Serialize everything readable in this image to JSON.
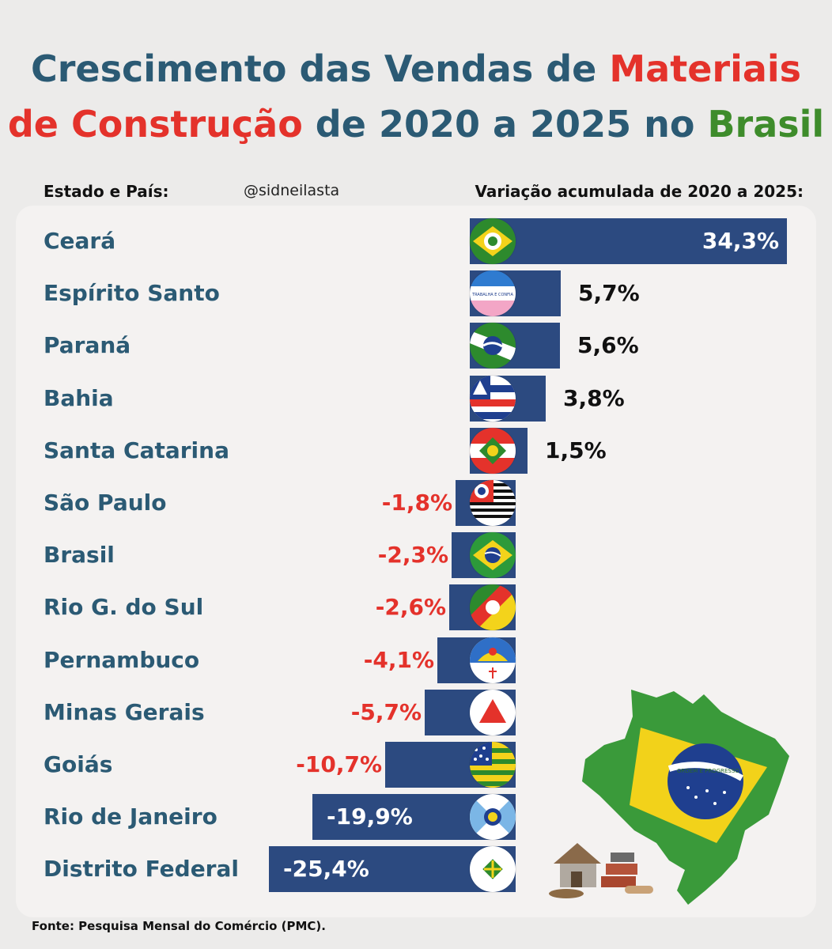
{
  "title": {
    "part1": "Crescimento das Vendas de ",
    "part2": "Materiais",
    "part3": "de Construção",
    "part4": " de 2020 a 2025 no ",
    "part5": "Brasil"
  },
  "header": {
    "left": "Estado e País:",
    "handle": "@sidneilasta",
    "right": "Variação acumulada de 2020 a 2025:"
  },
  "source": "Fonte: Pesquisa Mensal do Comércio (PMC).",
  "colors": {
    "bar": "#2c4a80",
    "negative": "#e4322b",
    "positive": "#111111",
    "label": "#2b5a74"
  },
  "chart_data": {
    "type": "bar",
    "orientation": "horizontal",
    "title": "Crescimento das Vendas de Materiais de Construção de 2020 a 2025 no Brasil",
    "xlabel": "Variação acumulada de 2020 a 2025",
    "ylabel": "Estado e País",
    "unit": "%",
    "categories": [
      "Ceará",
      "Espírito Santo",
      "Paraná",
      "Bahia",
      "Santa Catarina",
      "São Paulo",
      "Brasil",
      "Rio G. do Sul",
      "Pernambuco",
      "Minas Gerais",
      "Goiás",
      "Rio de Janeiro",
      "Distrito Federal"
    ],
    "values": [
      34.3,
      5.7,
      5.6,
      3.8,
      1.5,
      -1.8,
      -2.3,
      -2.6,
      -4.1,
      -5.7,
      -10.7,
      -19.9,
      -25.4
    ],
    "labels": [
      "34,3%",
      "5,7%",
      "5,6%",
      "3,8%",
      "1,5%",
      "-1,8%",
      "-2,3%",
      "-2,6%",
      "-4,1%",
      "-5,7%",
      "-10,7%",
      "-19,9%",
      "-25,4%"
    ],
    "flags": [
      "ceara-flag-icon",
      "espirito-santo-flag-icon",
      "parana-flag-icon",
      "bahia-flag-icon",
      "santa-catarina-flag-icon",
      "sao-paulo-flag-icon",
      "brasil-flag-icon",
      "rio-grande-do-sul-flag-icon",
      "pernambuco-flag-icon",
      "minas-gerais-flag-icon",
      "goias-flag-icon",
      "rio-de-janeiro-flag-icon",
      "distrito-federal-flag-icon"
    ],
    "flag_texts": {
      "espirito-santo": "TRABALHA E CONFIA",
      "brasil-map": "ORDEM E PROGRESSO"
    },
    "grid": false,
    "legend": "none"
  }
}
